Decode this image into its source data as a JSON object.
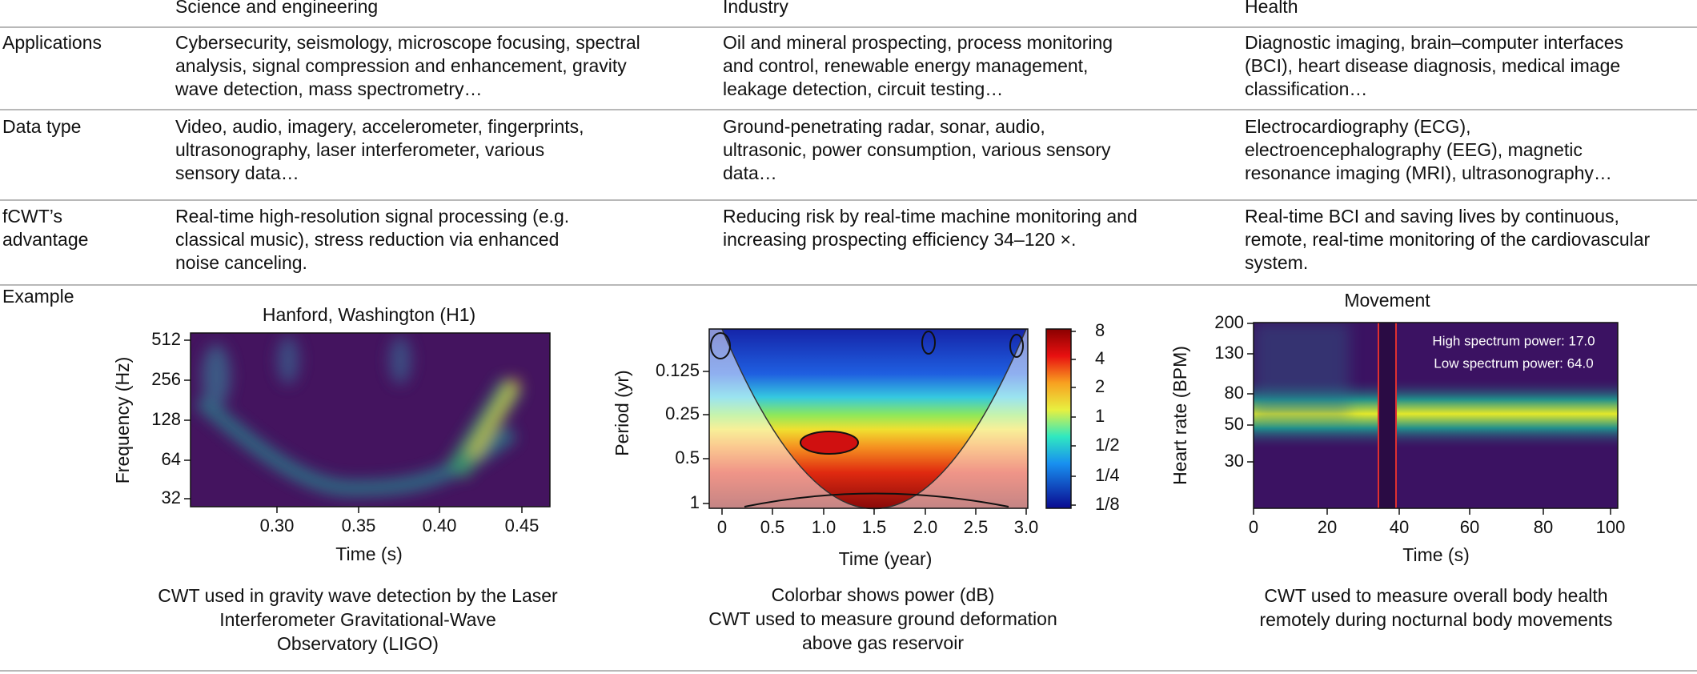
{
  "table": {
    "headers": [
      "Science and engineering",
      "Industry",
      "Health"
    ],
    "rows": [
      {
        "label": [
          "Applications"
        ],
        "cells": [
          [
            "Cybersecurity, seismology, microscope focusing, spectral",
            "analysis, signal compression and enhancement, gravity",
            "wave detection, mass spectrometry…"
          ],
          [
            "Oil and mineral prospecting, process monitoring",
            "and control, renewable energy management,",
            "leakage detection, circuit testing…"
          ],
          [
            "Diagnostic imaging, brain–computer interfaces",
            "(BCI), heart disease diagnosis, medical image",
            "classification…"
          ]
        ]
      },
      {
        "label": [
          "Data type"
        ],
        "cells": [
          [
            "Video, audio, imagery, accelerometer, fingerprints,",
            "ultrasonography, laser interferometer, various",
            "sensory data…"
          ],
          [
            "Ground-penetrating radar, sonar, audio,",
            "ultrasonic, power consumption, various sensory",
            "data…"
          ],
          [
            "Electrocardiography (ECG),",
            "electroencephalography (EEG), magnetic",
            "resonance imaging (MRI), ultrasonography…"
          ]
        ]
      },
      {
        "label": [
          "fCWT’s",
          "advantage"
        ],
        "cells": [
          [
            "Real-time high-resolution signal processing (e.g.",
            "classical music), stress reduction via enhanced",
            "noise canceling."
          ],
          [
            "Reducing risk by real-time machine monitoring and",
            "increasing prospecting efficiency 34–120 ×."
          ],
          [
            "Real-time BCI and saving lives by continuous,",
            "remote, real-time monitoring of the cardiovascular",
            "system."
          ]
        ]
      }
    ],
    "example_label": "Example",
    "examples": [
      {
        "title": "Hanford, Washington (H1)",
        "xlabel": "Time (s)",
        "ylabel": "Frequency (Hz)",
        "xticks": [
          "0.30",
          "0.35",
          "0.40",
          "0.45"
        ],
        "yticks": [
          "512",
          "256",
          "128",
          "64",
          "32"
        ],
        "caption": [
          "CWT used in gravity wave detection by the Laser",
          "Interferometer Gravitational-Wave",
          "Observatory (LIGO)"
        ]
      },
      {
        "xlabel": "Time (year)",
        "ylabel": "Period (yr)",
        "xticks": [
          "0",
          "0.5",
          "1.0",
          "1.5",
          "2.0",
          "2.5",
          "3.0"
        ],
        "yticks": [
          "0.125",
          "0.25",
          "0.5",
          "1"
        ],
        "colorbar_ticks": [
          "8",
          "4",
          "2",
          "1",
          "1/2",
          "1/4",
          "1/8"
        ],
        "caption": [
          "Colorbar shows power (dB)",
          "CWT used to measure ground deformation",
          "above gas reservoir"
        ]
      },
      {
        "xlabel": "Time (s)",
        "ylabel": "Heart rate (BPM)",
        "xticks": [
          "0",
          "20",
          "40",
          "60",
          "80",
          "100"
        ],
        "yticks": [
          "200",
          "130",
          "80",
          "50",
          "30"
        ],
        "marker": "Movement",
        "annotations": [
          "High spectrum power: 17.0",
          "Low spectrum power: 64.0"
        ],
        "caption": [
          "CWT used to measure overall body health",
          "remotely during nocturnal body movements"
        ]
      }
    ]
  }
}
